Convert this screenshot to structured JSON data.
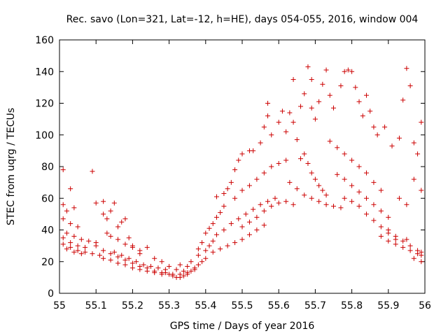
{
  "chart_data": {
    "type": "scatter",
    "title": "Rec. savo (Lon=321, Lat=-12, h=HE), days 054-055, 2016, window 004",
    "xlabel": "GPS time / Days of year 2016",
    "ylabel": "STEC from uqrg / TECUs",
    "xlim": [
      55,
      56
    ],
    "ylim": [
      0,
      160
    ],
    "xticks": [
      "55",
      "55.1",
      "55.2",
      "55.3",
      "55.4",
      "55.5",
      "55.6",
      "55.7",
      "55.8",
      "55.9",
      "56"
    ],
    "yticks": [
      "0",
      "20",
      "40",
      "60",
      "80",
      "100",
      "120",
      "140",
      "160"
    ],
    "grid": false,
    "marker": "+",
    "color": "#cc0000",
    "series": [
      {
        "points": [
          [
            55.01,
            78
          ],
          [
            55.03,
            66
          ],
          [
            55.09,
            77
          ],
          [
            55.01,
            56
          ],
          [
            55.02,
            52
          ],
          [
            55.04,
            54
          ],
          [
            55.01,
            47
          ],
          [
            55.03,
            44
          ],
          [
            55.05,
            42
          ],
          [
            55.02,
            38
          ],
          [
            55.04,
            36
          ],
          [
            55.06,
            34
          ],
          [
            55.08,
            33
          ],
          [
            55.1,
            32
          ],
          [
            55.01,
            35
          ],
          [
            55.03,
            32
          ],
          [
            55.05,
            30
          ],
          [
            55.07,
            29
          ],
          [
            55.01,
            31
          ],
          [
            55.03,
            29
          ],
          [
            55.05,
            27
          ],
          [
            55.07,
            26
          ],
          [
            55.09,
            25
          ],
          [
            55.11,
            24
          ],
          [
            55.02,
            28
          ],
          [
            55.04,
            26
          ],
          [
            55.06,
            25
          ],
          [
            55.1,
            57
          ],
          [
            55.12,
            58
          ],
          [
            55.15,
            57
          ],
          [
            55.14,
            52
          ],
          [
            55.17,
            45
          ],
          [
            55.18,
            47
          ],
          [
            55.12,
            50
          ],
          [
            55.13,
            47
          ],
          [
            55.16,
            42
          ],
          [
            55.13,
            38
          ],
          [
            55.14,
            36
          ],
          [
            55.16,
            34
          ],
          [
            55.18,
            31
          ],
          [
            55.2,
            29
          ],
          [
            55.22,
            27
          ],
          [
            55.24,
            29
          ],
          [
            55.1,
            30
          ],
          [
            55.12,
            27
          ],
          [
            55.14,
            25
          ],
          [
            55.16,
            23
          ],
          [
            55.18,
            21
          ],
          [
            55.2,
            19
          ],
          [
            55.22,
            17
          ],
          [
            55.24,
            16
          ],
          [
            55.26,
            14
          ],
          [
            55.28,
            13
          ],
          [
            55.12,
            22
          ],
          [
            55.14,
            21
          ],
          [
            55.16,
            19
          ],
          [
            55.18,
            18
          ],
          [
            55.2,
            16
          ],
          [
            55.22,
            15
          ],
          [
            55.24,
            14
          ],
          [
            55.26,
            13
          ],
          [
            55.28,
            12
          ],
          [
            55.15,
            26
          ],
          [
            55.17,
            24
          ],
          [
            55.19,
            22
          ],
          [
            55.21,
            20
          ],
          [
            55.23,
            18
          ],
          [
            55.25,
            17
          ],
          [
            55.27,
            16
          ],
          [
            55.29,
            15
          ],
          [
            55.19,
            35
          ],
          [
            55.2,
            30
          ],
          [
            55.22,
            25
          ],
          [
            55.26,
            22
          ],
          [
            55.28,
            20
          ],
          [
            55.3,
            17
          ],
          [
            55.32,
            15
          ],
          [
            55.34,
            14
          ],
          [
            55.3,
            12
          ],
          [
            55.31,
            11
          ],
          [
            55.32,
            10
          ],
          [
            55.33,
            10
          ],
          [
            55.34,
            11
          ],
          [
            55.35,
            12
          ],
          [
            55.36,
            14
          ],
          [
            55.37,
            16
          ],
          [
            55.29,
            13
          ],
          [
            55.31,
            12
          ],
          [
            55.33,
            12
          ],
          [
            55.35,
            13
          ],
          [
            55.37,
            15
          ],
          [
            55.38,
            18
          ],
          [
            55.39,
            20
          ],
          [
            55.4,
            22
          ],
          [
            55.33,
            18
          ],
          [
            55.35,
            17
          ],
          [
            55.36,
            20
          ],
          [
            55.38,
            24
          ],
          [
            55.4,
            27
          ],
          [
            55.41,
            30
          ],
          [
            55.42,
            33
          ],
          [
            55.43,
            37
          ],
          [
            55.38,
            28
          ],
          [
            55.39,
            32
          ],
          [
            55.4,
            38
          ],
          [
            55.41,
            41
          ],
          [
            55.42,
            44
          ],
          [
            55.43,
            48
          ],
          [
            55.44,
            51
          ],
          [
            55.45,
            55
          ],
          [
            55.42,
            26
          ],
          [
            55.44,
            28
          ],
          [
            55.46,
            30
          ],
          [
            55.48,
            32
          ],
          [
            55.5,
            34
          ],
          [
            55.52,
            37
          ],
          [
            55.54,
            40
          ],
          [
            55.56,
            43
          ],
          [
            55.43,
            61
          ],
          [
            55.45,
            63
          ],
          [
            55.46,
            66
          ],
          [
            55.47,
            70
          ],
          [
            55.48,
            78
          ],
          [
            55.49,
            84
          ],
          [
            55.5,
            88
          ],
          [
            55.52,
            90
          ],
          [
            55.45,
            40
          ],
          [
            55.47,
            44
          ],
          [
            55.49,
            47
          ],
          [
            55.51,
            50
          ],
          [
            55.53,
            53
          ],
          [
            55.55,
            56
          ],
          [
            55.57,
            58
          ],
          [
            55.59,
            60
          ],
          [
            55.48,
            60
          ],
          [
            55.5,
            65
          ],
          [
            55.52,
            68
          ],
          [
            55.54,
            72
          ],
          [
            55.56,
            76
          ],
          [
            55.58,
            80
          ],
          [
            55.6,
            82
          ],
          [
            55.62,
            84
          ],
          [
            55.5,
            42
          ],
          [
            55.52,
            45
          ],
          [
            55.54,
            48
          ],
          [
            55.56,
            52
          ],
          [
            55.58,
            55
          ],
          [
            55.6,
            57
          ],
          [
            55.62,
            58
          ],
          [
            55.64,
            56
          ],
          [
            55.53,
            90
          ],
          [
            55.55,
            95
          ],
          [
            55.56,
            105
          ],
          [
            55.57,
            112
          ],
          [
            55.58,
            100
          ],
          [
            55.6,
            108
          ],
          [
            55.61,
            115
          ],
          [
            55.62,
            102
          ],
          [
            55.57,
            120
          ],
          [
            55.63,
            114
          ],
          [
            55.64,
            108
          ],
          [
            55.65,
            97
          ],
          [
            55.66,
            118
          ],
          [
            55.67,
            126
          ],
          [
            55.68,
            143
          ],
          [
            55.69,
            135
          ],
          [
            55.64,
            135
          ],
          [
            55.69,
            117
          ],
          [
            55.7,
            110
          ],
          [
            55.71,
            121
          ],
          [
            55.72,
            132
          ],
          [
            55.73,
            141
          ],
          [
            55.74,
            125
          ],
          [
            55.75,
            117
          ],
          [
            55.77,
            131
          ],
          [
            55.78,
            140
          ],
          [
            55.79,
            141
          ],
          [
            55.8,
            140
          ],
          [
            55.81,
            130
          ],
          [
            55.82,
            121
          ],
          [
            55.83,
            112
          ],
          [
            55.84,
            125
          ],
          [
            55.66,
            85
          ],
          [
            55.67,
            88
          ],
          [
            55.68,
            82
          ],
          [
            55.69,
            76
          ],
          [
            55.7,
            72
          ],
          [
            55.71,
            68
          ],
          [
            55.72,
            65
          ],
          [
            55.73,
            62
          ],
          [
            55.63,
            70
          ],
          [
            55.65,
            66
          ],
          [
            55.67,
            62
          ],
          [
            55.69,
            60
          ],
          [
            55.71,
            58
          ],
          [
            55.73,
            56
          ],
          [
            55.75,
            55
          ],
          [
            55.77,
            54
          ],
          [
            55.74,
            96
          ],
          [
            55.76,
            92
          ],
          [
            55.78,
            88
          ],
          [
            55.8,
            84
          ],
          [
            55.82,
            80
          ],
          [
            55.84,
            76
          ],
          [
            55.86,
            70
          ],
          [
            55.88,
            65
          ],
          [
            55.76,
            75
          ],
          [
            55.78,
            72
          ],
          [
            55.8,
            68
          ],
          [
            55.82,
            64
          ],
          [
            55.84,
            60
          ],
          [
            55.86,
            56
          ],
          [
            55.88,
            52
          ],
          [
            55.9,
            48
          ],
          [
            55.78,
            60
          ],
          [
            55.8,
            58
          ],
          [
            55.82,
            55
          ],
          [
            55.84,
            50
          ],
          [
            55.86,
            46
          ],
          [
            55.88,
            42
          ],
          [
            55.9,
            38
          ],
          [
            55.92,
            34
          ],
          [
            55.85,
            115
          ],
          [
            55.86,
            105
          ],
          [
            55.87,
            100
          ],
          [
            55.89,
            105
          ],
          [
            55.91,
            93
          ],
          [
            55.93,
            98
          ],
          [
            55.94,
            122
          ],
          [
            55.95,
            142
          ],
          [
            55.96,
            131
          ],
          [
            55.97,
            95
          ],
          [
            55.98,
            88
          ],
          [
            55.99,
            108
          ],
          [
            55.99,
            65
          ],
          [
            55.97,
            72
          ],
          [
            55.93,
            60
          ],
          [
            55.95,
            56
          ],
          [
            55.9,
            40
          ],
          [
            55.92,
            36
          ],
          [
            55.94,
            33
          ],
          [
            55.96,
            30
          ],
          [
            55.98,
            27
          ],
          [
            55.99,
            24
          ],
          [
            55.99,
            20
          ],
          [
            55.97,
            22
          ],
          [
            55.88,
            36
          ],
          [
            55.9,
            33
          ],
          [
            55.92,
            31
          ],
          [
            55.94,
            29
          ],
          [
            55.96,
            27
          ],
          [
            55.98,
            25
          ],
          [
            55.99,
            26
          ],
          [
            55.95,
            34
          ]
        ]
      }
    ]
  }
}
